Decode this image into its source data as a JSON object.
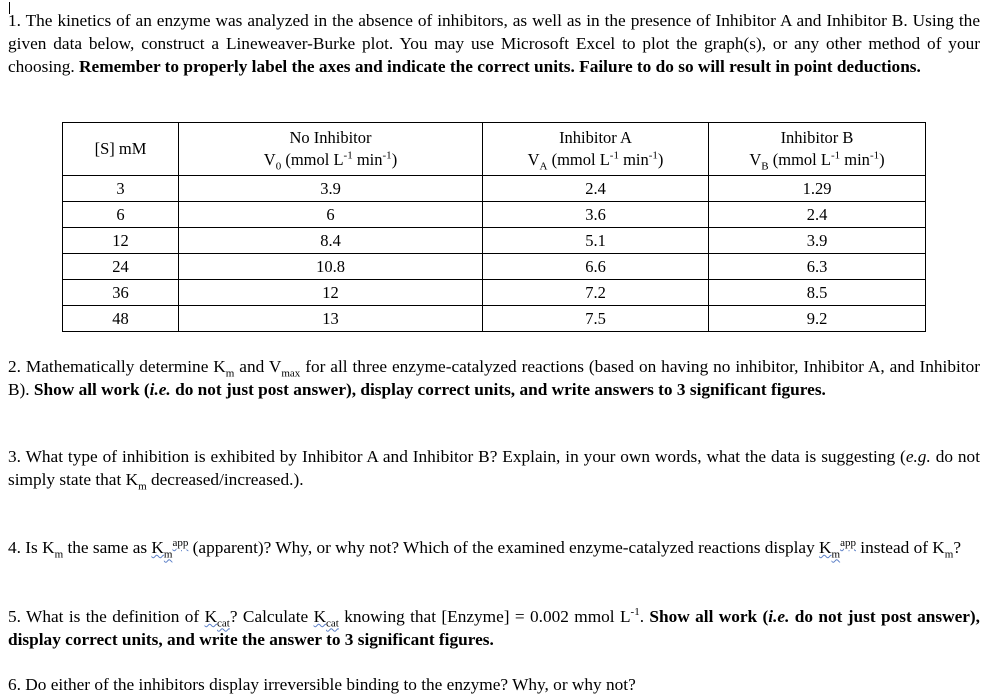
{
  "questions": [
    {
      "id": "q1",
      "segments": [
        {
          "t": "1. The kinetics of an enzyme was analyzed in the absence of inhibitors, as well as in the presence of Inhibitor A and Inhibitor B. Using the given data below, construct a Lineweaver-Burke plot. You may use Microsoft Excel to plot the graph(s), or any other method of your choosing. ",
          "s": ""
        },
        {
          "t": "Remember to properly label the axes and indicate the correct units. Failure to do so will result in point deductions.",
          "s": "b"
        }
      ]
    },
    {
      "id": "q2",
      "segments": [
        {
          "t": "2. Mathematically determine K",
          "s": ""
        },
        {
          "t": "m",
          "s": "sub"
        },
        {
          "t": " and V",
          "s": ""
        },
        {
          "t": "max",
          "s": "sub"
        },
        {
          "t": " for all three enzyme-catalyzed reactions (based on having no inhibitor, Inhibitor A, and Inhibitor B). ",
          "s": ""
        },
        {
          "t": "Show all work (",
          "s": "b"
        },
        {
          "t": "i.e.",
          "s": "bi"
        },
        {
          "t": " do not just post answer), display correct units, and write answers to 3 significant figures.",
          "s": "b"
        }
      ]
    },
    {
      "id": "q3",
      "segments": [
        {
          "t": "3. What type of inhibition is exhibited by Inhibitor A and Inhibitor B? Explain, in your own words, what the data is suggesting (",
          "s": ""
        },
        {
          "t": "e.g.",
          "s": "i"
        },
        {
          "t": " do not simply state that K",
          "s": ""
        },
        {
          "t": "m",
          "s": "sub"
        },
        {
          "t": " decreased/increased.).",
          "s": ""
        }
      ]
    },
    {
      "id": "q4",
      "segments": [
        {
          "t": "4. Is K",
          "s": ""
        },
        {
          "t": "m",
          "s": "sub"
        },
        {
          "t": " the same as ",
          "s": ""
        },
        {
          "t": "K",
          "s": "u"
        },
        {
          "t": "m",
          "s": "sub u"
        },
        {
          "t": "app",
          "s": "sup u"
        },
        {
          "t": " (apparent)? Why, or why not? Which of the examined enzyme-catalyzed reactions display ",
          "s": ""
        },
        {
          "t": "K",
          "s": "u"
        },
        {
          "t": "m",
          "s": "sub u"
        },
        {
          "t": "app",
          "s": "sup u"
        },
        {
          "t": " instead of K",
          "s": ""
        },
        {
          "t": "m",
          "s": "sub"
        },
        {
          "t": "?",
          "s": ""
        }
      ]
    },
    {
      "id": "q5",
      "segments": [
        {
          "t": "5. What is the definition of ",
          "s": ""
        },
        {
          "t": "K",
          "s": "u"
        },
        {
          "t": "cat",
          "s": "sub u"
        },
        {
          "t": "? Calculate ",
          "s": ""
        },
        {
          "t": "K",
          "s": "u"
        },
        {
          "t": "cat",
          "s": "sub u"
        },
        {
          "t": " knowing that [Enzyme] = 0.002 mmol L",
          "s": ""
        },
        {
          "t": "-1",
          "s": "sup"
        },
        {
          "t": ". ",
          "s": ""
        },
        {
          "t": "Show all work (",
          "s": "b"
        },
        {
          "t": "i.e.",
          "s": "bi"
        },
        {
          "t": " do not just post answer), display correct units, and write the answer to 3 significant figures.",
          "s": "b"
        }
      ]
    },
    {
      "id": "q6",
      "segments": [
        {
          "t": "6. Do either of the inhibitors display irreversible binding to the enzyme? Why, or why not?",
          "s": ""
        }
      ]
    }
  ],
  "table": {
    "headers": [
      [
        {
          "t": "[S] mM",
          "s": ""
        }
      ],
      [
        {
          "t": "No Inhibitor",
          "s": ""
        },
        {
          "t": "\n",
          "s": "br"
        },
        {
          "t": "V",
          "s": ""
        },
        {
          "t": "0",
          "s": "sub"
        },
        {
          "t": " (mmol L",
          "s": ""
        },
        {
          "t": "-1",
          "s": "sup"
        },
        {
          "t": " min",
          "s": ""
        },
        {
          "t": "-1",
          "s": "sup"
        },
        {
          "t": ")",
          "s": ""
        }
      ],
      [
        {
          "t": "Inhibitor A",
          "s": ""
        },
        {
          "t": "\n",
          "s": "br"
        },
        {
          "t": "V",
          "s": ""
        },
        {
          "t": "A",
          "s": "sub"
        },
        {
          "t": " (mmol L",
          "s": ""
        },
        {
          "t": "-1",
          "s": "sup"
        },
        {
          "t": " min",
          "s": ""
        },
        {
          "t": "-1",
          "s": "sup"
        },
        {
          "t": ")",
          "s": ""
        }
      ],
      [
        {
          "t": "Inhibitor B",
          "s": ""
        },
        {
          "t": "\n",
          "s": "br"
        },
        {
          "t": "V",
          "s": ""
        },
        {
          "t": "B",
          "s": "sub"
        },
        {
          "t": " (mmol L",
          "s": ""
        },
        {
          "t": "-1",
          "s": "sup"
        },
        {
          "t": " min",
          "s": ""
        },
        {
          "t": "-1",
          "s": "sup"
        },
        {
          "t": ")",
          "s": ""
        }
      ]
    ],
    "rows": [
      [
        "3",
        "3.9",
        "2.4",
        "1.29"
      ],
      [
        "6",
        "6",
        "3.6",
        "2.4"
      ],
      [
        "12",
        "8.4",
        "5.1",
        "3.9"
      ],
      [
        "24",
        "10.8",
        "6.6",
        "6.3"
      ],
      [
        "36",
        "12",
        "7.2",
        "8.5"
      ],
      [
        "48",
        "13",
        "7.5",
        "9.2"
      ]
    ]
  }
}
